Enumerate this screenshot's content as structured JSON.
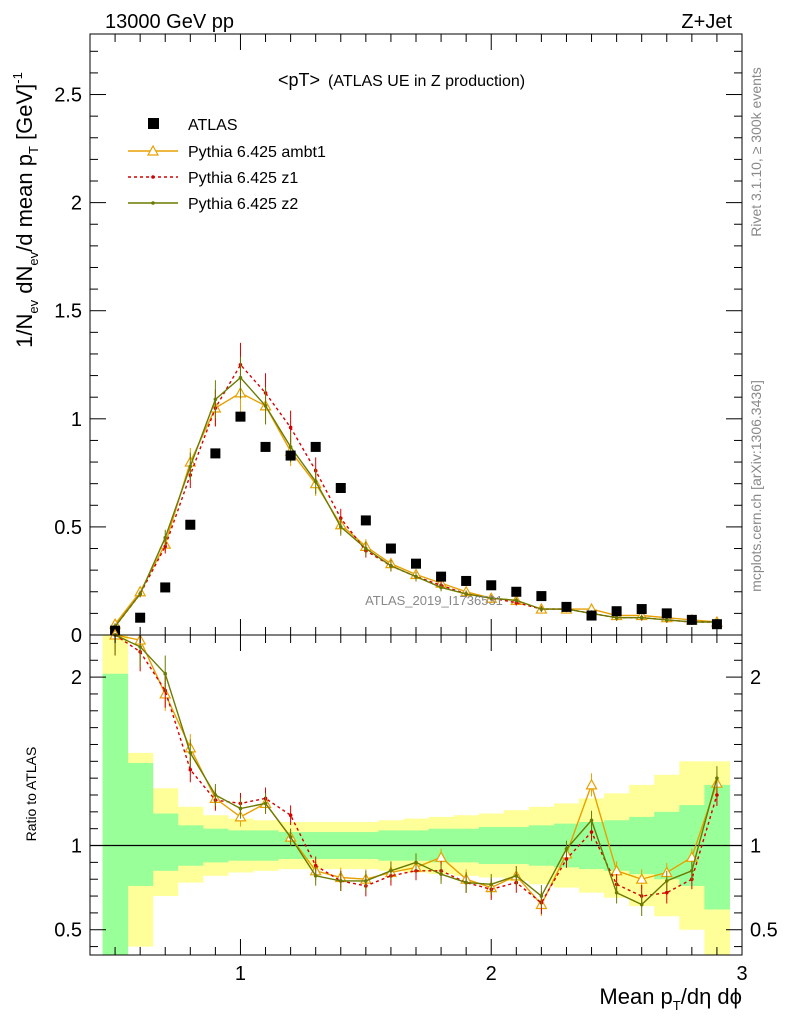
{
  "header": {
    "energy_label": "13000 GeV pp",
    "process_label": "Z+Jet",
    "plot_title": "<pT>",
    "plot_subtitle": "(ATLAS UE in Z production)",
    "side_label_top": "Rivet 3.1.10, ≥ 300k events",
    "side_label_bottom": "mcplots.cern.ch [arXiv:1306.3436]",
    "watermark": "ATLAS_2019_I1736531"
  },
  "axes": {
    "main_ylabel_parts": [
      "1/N",
      "ev",
      " dN",
      "ev",
      "/d mean p",
      "T",
      " [GeV]",
      "-1"
    ],
    "ratio_ylabel": "Ratio to ATLAS",
    "xlabel_parts": [
      "Mean p",
      "T",
      "/dη dϕ"
    ]
  },
  "legend": [
    {
      "label": "ATLAS",
      "style": "data"
    },
    {
      "label": "Pythia 6.425 ambt1",
      "style": "ambt1"
    },
    {
      "label": "Pythia 6.425 z1",
      "style": "z1"
    },
    {
      "label": "Pythia 6.425 z2",
      "style": "z2"
    }
  ],
  "colors": {
    "atlas": "#000000",
    "ambt1": "#e8a000",
    "z1": "#d40000",
    "z2": "#6b7a00",
    "band_inner": "#99ff99",
    "band_outer": "#ffff99"
  },
  "chart_data": [
    {
      "type": "scatter",
      "xlim": [
        0.4,
        3.0
      ],
      "ylim": [
        0,
        2.78
      ],
      "x_ticks": [
        1,
        2,
        3
      ],
      "y_ticks": [
        0,
        0.5,
        1,
        1.5,
        2,
        2.5
      ],
      "y_tick_labels": [
        "0",
        "0.5",
        "1",
        "1.5",
        "2",
        "2.5"
      ],
      "x": [
        0.5,
        0.6,
        0.7,
        0.8,
        0.9,
        1.0,
        1.1,
        1.2,
        1.3,
        1.4,
        1.5,
        1.6,
        1.7,
        1.8,
        1.9,
        2.0,
        2.1,
        2.2,
        2.3,
        2.4,
        2.5,
        2.6,
        2.7,
        2.8,
        2.9
      ],
      "series": [
        {
          "name": "ATLAS",
          "values": [
            0.02,
            0.08,
            0.22,
            0.51,
            0.84,
            1.01,
            0.87,
            0.83,
            0.87,
            0.68,
            0.53,
            0.4,
            0.33,
            0.27,
            0.25,
            0.23,
            0.2,
            0.18,
            0.13,
            0.09,
            0.11,
            0.12,
            0.1,
            0.07,
            0.05
          ]
        },
        {
          "name": "Pythia 6.425 ambt1",
          "values": [
            0.05,
            0.2,
            0.42,
            0.8,
            1.05,
            1.12,
            1.06,
            0.85,
            0.7,
            0.51,
            0.41,
            0.33,
            0.28,
            0.24,
            0.2,
            0.17,
            0.16,
            0.12,
            0.12,
            0.12,
            0.09,
            0.09,
            0.08,
            0.07,
            0.06
          ]
        },
        {
          "name": "Pythia 6.425 z1",
          "values": [
            0.04,
            0.19,
            0.41,
            0.74,
            1.05,
            1.25,
            1.12,
            0.96,
            0.76,
            0.54,
            0.39,
            0.32,
            0.27,
            0.23,
            0.19,
            0.17,
            0.15,
            0.12,
            0.12,
            0.1,
            0.08,
            0.08,
            0.07,
            0.06,
            0.06
          ]
        },
        {
          "name": "Pythia 6.425 z2",
          "values": [
            0.04,
            0.19,
            0.45,
            0.78,
            1.09,
            1.19,
            1.06,
            0.87,
            0.71,
            0.5,
            0.4,
            0.32,
            0.27,
            0.22,
            0.19,
            0.17,
            0.16,
            0.12,
            0.12,
            0.1,
            0.08,
            0.08,
            0.07,
            0.06,
            0.06
          ]
        }
      ]
    },
    {
      "type": "line",
      "xlim": [
        0.4,
        3.0
      ],
      "ylim": [
        0.35,
        2.25
      ],
      "x_ticks": [
        1,
        2,
        3
      ],
      "x_tick_labels": [
        "1",
        "2",
        "3"
      ],
      "y_ticks": [
        0.5,
        1,
        2
      ],
      "y_tick_labels": [
        "0.5",
        "1",
        "2"
      ],
      "x": [
        0.5,
        0.6,
        0.7,
        0.8,
        0.9,
        1.0,
        1.1,
        1.2,
        1.3,
        1.4,
        1.5,
        1.6,
        1.7,
        1.8,
        1.9,
        2.0,
        2.1,
        2.2,
        2.3,
        2.4,
        2.5,
        2.6,
        2.7,
        2.8,
        2.9
      ],
      "band_edges": [
        0.45,
        0.55,
        0.65,
        0.75,
        0.85,
        0.95,
        1.05,
        1.15,
        1.25,
        1.35,
        1.45,
        1.55,
        1.65,
        1.75,
        1.85,
        1.95,
        2.05,
        2.15,
        2.25,
        2.35,
        2.45,
        2.55,
        2.65,
        2.75,
        2.85,
        2.95
      ],
      "band_inner": [
        [
          0.35,
          2.02
        ],
        [
          0.76,
          1.49
        ],
        [
          0.85,
          1.19
        ],
        [
          0.88,
          1.12
        ],
        [
          0.9,
          1.1
        ],
        [
          0.91,
          1.09
        ],
        [
          0.91,
          1.09
        ],
        [
          0.92,
          1.08
        ],
        [
          0.92,
          1.08
        ],
        [
          0.92,
          1.08
        ],
        [
          0.92,
          1.08
        ],
        [
          0.91,
          1.09
        ],
        [
          0.91,
          1.09
        ],
        [
          0.9,
          1.1
        ],
        [
          0.9,
          1.1
        ],
        [
          0.89,
          1.11
        ],
        [
          0.89,
          1.11
        ],
        [
          0.88,
          1.12
        ],
        [
          0.87,
          1.13
        ],
        [
          0.86,
          1.14
        ],
        [
          0.85,
          1.15
        ],
        [
          0.83,
          1.17
        ],
        [
          0.8,
          1.2
        ],
        [
          0.76,
          1.24
        ],
        [
          0.62,
          1.36
        ]
      ],
      "band_outer": [
        [
          0.35,
          2.25
        ],
        [
          0.4,
          1.55
        ],
        [
          0.7,
          1.34
        ],
        [
          0.78,
          1.23
        ],
        [
          0.82,
          1.18
        ],
        [
          0.84,
          1.16
        ],
        [
          0.85,
          1.15
        ],
        [
          0.86,
          1.14
        ],
        [
          0.86,
          1.14
        ],
        [
          0.86,
          1.14
        ],
        [
          0.86,
          1.14
        ],
        [
          0.85,
          1.15
        ],
        [
          0.84,
          1.16
        ],
        [
          0.83,
          1.17
        ],
        [
          0.82,
          1.18
        ],
        [
          0.81,
          1.19
        ],
        [
          0.79,
          1.21
        ],
        [
          0.77,
          1.23
        ],
        [
          0.75,
          1.25
        ],
        [
          0.72,
          1.28
        ],
        [
          0.69,
          1.31
        ],
        [
          0.64,
          1.36
        ],
        [
          0.58,
          1.42
        ],
        [
          0.5,
          1.5
        ],
        [
          0.35,
          1.5
        ]
      ],
      "series": [
        {
          "name": "Pythia 6.425 ambt1",
          "values": [
            2.25,
            2.22,
            1.9,
            1.58,
            1.28,
            1.17,
            1.25,
            1.05,
            0.85,
            0.81,
            0.8,
            0.84,
            0.87,
            0.93,
            0.8,
            0.75,
            0.82,
            0.65,
            0.95,
            1.36,
            0.85,
            0.8,
            0.84,
            0.93,
            1.37
          ]
        },
        {
          "name": "Pythia 6.425 z1",
          "values": [
            2.25,
            2.15,
            1.92,
            1.45,
            1.27,
            1.25,
            1.28,
            1.18,
            0.88,
            0.79,
            0.76,
            0.82,
            0.85,
            0.85,
            0.78,
            0.74,
            0.78,
            0.66,
            0.92,
            1.08,
            0.77,
            0.7,
            0.72,
            0.8,
            1.3
          ]
        },
        {
          "name": "Pythia 6.425 z2",
          "values": [
            2.25,
            2.18,
            2.02,
            1.55,
            1.3,
            1.22,
            1.25,
            1.05,
            0.82,
            0.79,
            0.79,
            0.85,
            0.9,
            0.83,
            0.78,
            0.77,
            0.82,
            0.7,
            0.98,
            1.15,
            0.72,
            0.65,
            0.79,
            0.85,
            1.4
          ]
        }
      ]
    }
  ]
}
